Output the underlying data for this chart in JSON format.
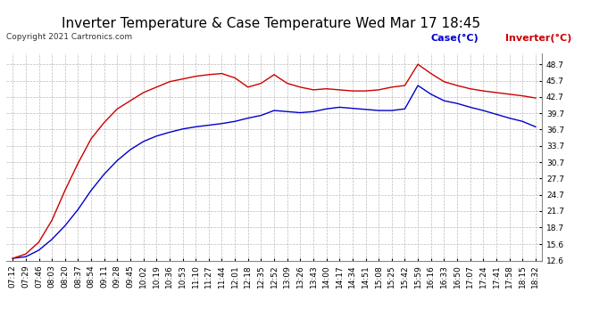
{
  "title": "Inverter Temperature & Case Temperature Wed Mar 17 18:45",
  "copyright": "Copyright 2021 Cartronics.com",
  "legend_case": "Case(°C)",
  "legend_inverter": "Inverter(°C)",
  "case_color": "#0000cc",
  "inverter_color": "#cc0000",
  "ylim": [
    12.6,
    50.7
  ],
  "yticks": [
    12.6,
    15.6,
    18.7,
    21.7,
    24.7,
    27.7,
    30.7,
    33.7,
    36.7,
    39.7,
    42.7,
    45.7,
    48.7
  ],
  "background_color": "#ffffff",
  "grid_color": "#bbbbbb",
  "title_fontsize": 11,
  "tick_fontsize": 6.5,
  "copyright_fontsize": 6.5,
  "legend_fontsize": 8,
  "x_tick_labels": [
    "07:12",
    "07:29",
    "07:46",
    "08:03",
    "08:20",
    "08:37",
    "08:54",
    "09:11",
    "09:28",
    "09:45",
    "10:02",
    "10:19",
    "10:36",
    "10:53",
    "11:10",
    "11:27",
    "11:44",
    "12:01",
    "12:18",
    "12:35",
    "12:52",
    "13:09",
    "13:26",
    "13:43",
    "14:00",
    "14:17",
    "14:34",
    "14:51",
    "15:08",
    "15:25",
    "15:42",
    "15:59",
    "16:16",
    "16:33",
    "16:50",
    "17:07",
    "17:24",
    "17:41",
    "17:58",
    "18:15",
    "18:32"
  ],
  "case_vals": [
    13.0,
    13.3,
    14.5,
    16.5,
    19.0,
    22.0,
    25.5,
    28.5,
    31.0,
    33.0,
    34.5,
    35.5,
    36.2,
    36.8,
    37.2,
    37.5,
    37.8,
    38.2,
    38.8,
    39.3,
    40.2,
    40.0,
    39.8,
    40.0,
    40.5,
    40.8,
    40.6,
    40.4,
    40.2,
    40.2,
    40.5,
    44.8,
    43.2,
    42.0,
    41.5,
    40.8,
    40.2,
    39.5,
    38.8,
    38.2,
    37.2
  ],
  "inv_vals": [
    13.0,
    13.8,
    16.0,
    20.0,
    25.5,
    30.5,
    35.0,
    38.0,
    40.5,
    42.0,
    43.5,
    44.5,
    45.5,
    46.0,
    46.5,
    46.8,
    47.0,
    46.2,
    44.5,
    45.2,
    46.8,
    45.2,
    44.5,
    44.0,
    44.2,
    44.0,
    43.8,
    43.8,
    44.0,
    44.5,
    44.8,
    48.7,
    47.0,
    45.5,
    44.8,
    44.2,
    43.8,
    43.5,
    43.2,
    42.9,
    42.5
  ]
}
